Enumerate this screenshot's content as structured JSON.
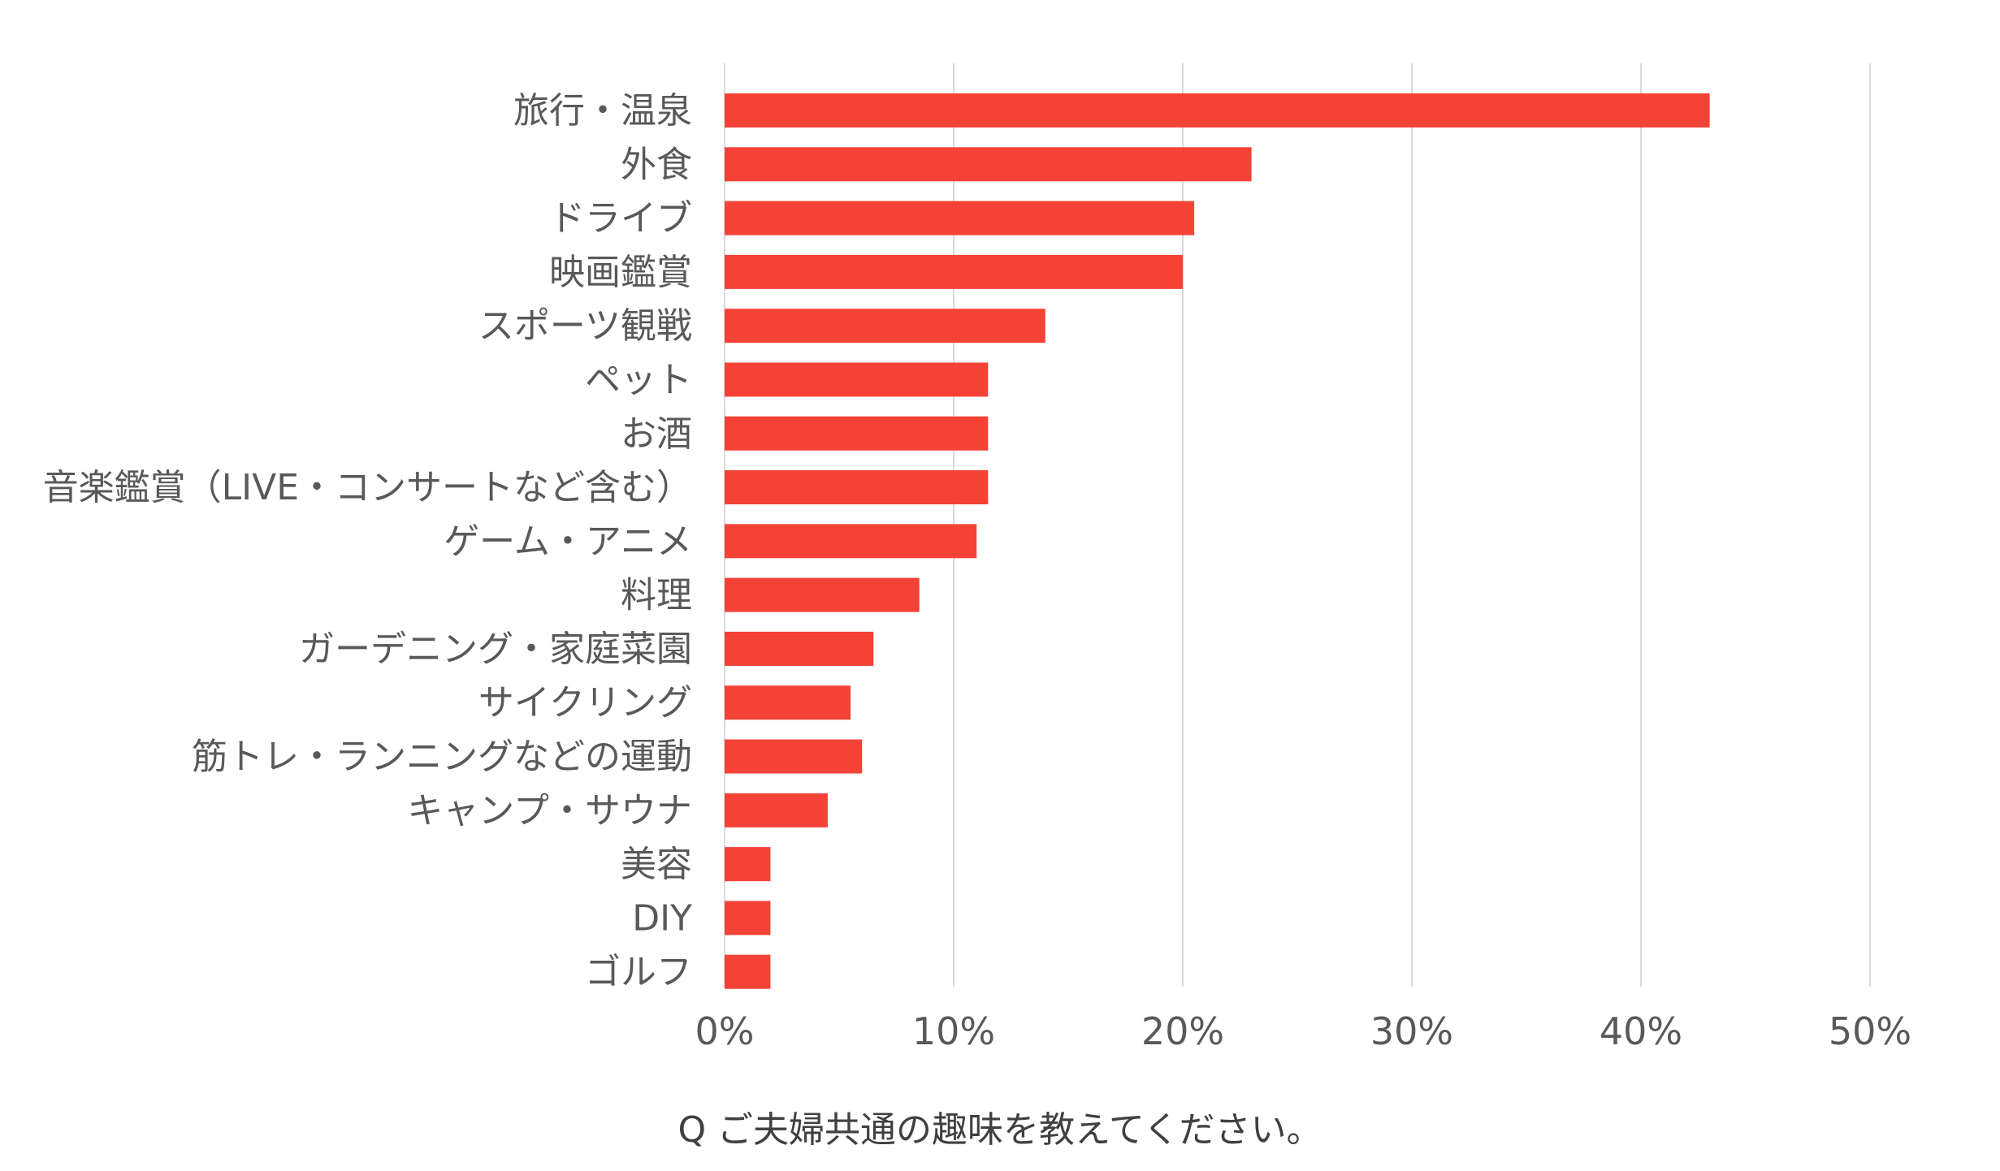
{
  "chart_data": {
    "type": "bar",
    "orientation": "horizontal",
    "categories": [
      "旅行・温泉",
      "外食",
      "ドライブ",
      "映画鑑賞",
      "スポーツ観戦",
      "ペット",
      "お酒",
      "音楽鑑賞（LIVE・コンサートなど含む）",
      "ゲーム・アニメ",
      "料理",
      "ガーデニング・家庭菜園",
      "サイクリング",
      "筋トレ・ランニングなどの運動",
      "キャンプ・サウナ",
      "美容",
      "DIY",
      "ゴルフ"
    ],
    "values": [
      43,
      23,
      20.5,
      20,
      14,
      11.5,
      11.5,
      11.5,
      11,
      8.5,
      6.5,
      5.5,
      6,
      4.5,
      2,
      2,
      2
    ],
    "xlim": [
      0,
      50
    ],
    "xticks": [
      "0%",
      "10%",
      "20%",
      "30%",
      "40%",
      "50%"
    ],
    "grid": true,
    "bar_color": "#f44336",
    "gridline_color": "#d9d9d9",
    "xlabel": "Q ご夫婦共通の趣味を教えてください。"
  }
}
